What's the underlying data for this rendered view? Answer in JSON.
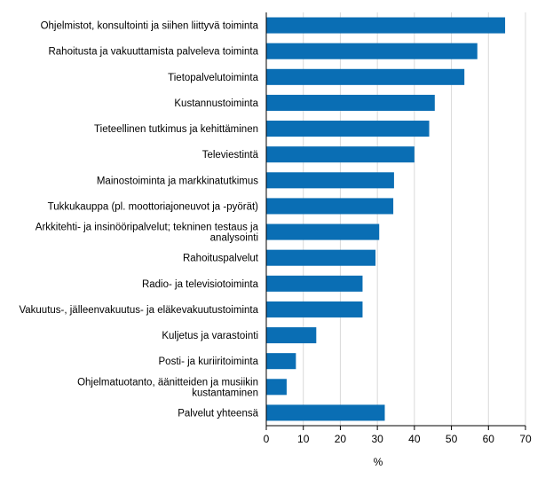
{
  "chart_data": {
    "type": "bar",
    "orientation": "horizontal",
    "categories": [
      "Ohjelmistot, konsultointi ja siihen liittyvä toiminta",
      "Rahoitusta ja vakuuttamista palveleva toiminta",
      "Tietopalvelutoiminta",
      "Kustannustoiminta",
      "Tieteellinen tutkimus ja kehittäminen",
      "Televiestintä",
      "Mainostoiminta ja markkinatutkimus",
      "Tukkukauppa (pl. moottoriajoneuvot ja -pyörät)",
      "Arkkitehti- ja insinööripalvelut; tekninen testaus ja analysointi",
      "Rahoituspalvelut",
      "Radio- ja televisiotoiminta",
      "Vakuutus-, jälleenvakuutus- ja eläkevakuutustoiminta",
      "Kuljetus ja varastointi",
      "Posti- ja kuriiritoiminta",
      "Ohjelmatuotanto, äänitteiden ja musiikin kustantaminen",
      "Palvelut yhteensä"
    ],
    "category_lines": [
      [
        "Ohjelmistot, konsultointi ja siihen liittyvä toiminta"
      ],
      [
        "Rahoitusta ja vakuuttamista palveleva toiminta"
      ],
      [
        "Tietopalvelutoiminta"
      ],
      [
        "Kustannustoiminta"
      ],
      [
        "Tieteellinen tutkimus ja kehittäminen"
      ],
      [
        "Televiestintä"
      ],
      [
        "Mainostoiminta ja markkinatutkimus"
      ],
      [
        "Tukkukauppa (pl. moottoriajoneuvot ja -pyörät)"
      ],
      [
        "Arkkitehti- ja insinööripalvelut; tekninen testaus ja",
        "analysointi"
      ],
      [
        "Rahoituspalvelut"
      ],
      [
        "Radio- ja televisiotoiminta"
      ],
      [
        "Vakuutus-, jälleenvakuutus- ja eläkevakuutustoiminta"
      ],
      [
        "Kuljetus ja varastointi"
      ],
      [
        "Posti- ja kuriiritoiminta"
      ],
      [
        "Ohjelmatuotanto, äänitteiden ja musiikin",
        "kustantaminen"
      ],
      [
        "Palvelut yhteensä"
      ]
    ],
    "values": [
      64.5,
      57,
      53.5,
      45.5,
      44,
      40,
      34.5,
      34.3,
      30.5,
      29.5,
      26,
      26,
      13.5,
      8,
      5.5,
      32
    ],
    "xlabel": "%",
    "xlim": [
      0,
      70
    ],
    "xticks": [
      0,
      10,
      20,
      30,
      40,
      50,
      60,
      70
    ],
    "grid": "vertical",
    "legend": "none",
    "bar_color": "#0a6eb4",
    "grid_color": "#d9d9d9",
    "axis_color": "#000000"
  }
}
